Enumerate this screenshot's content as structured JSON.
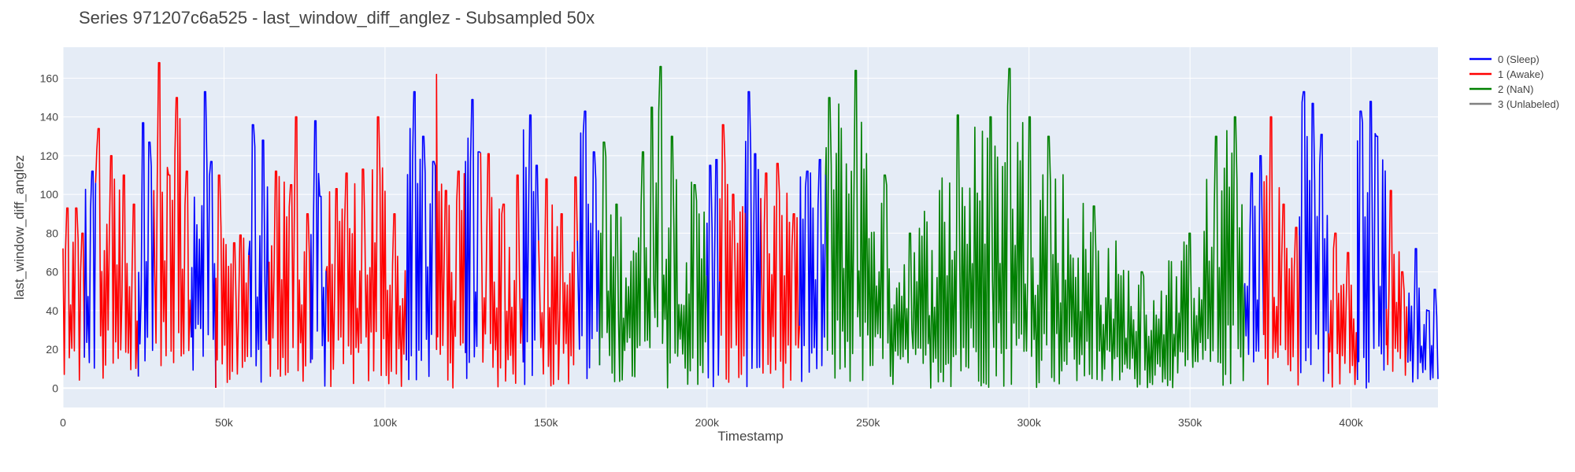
{
  "chart_data": {
    "type": "line",
    "title": "Series 971207c6a525 - last_window_diff_anglez - Subsampled 50x",
    "xlabel": "Timestamp",
    "ylabel": "last_window_diff_anglez",
    "xlim": [
      0,
      427000
    ],
    "ylim": [
      -10,
      176
    ],
    "grid": true,
    "legend_position": "top-right",
    "x_ticks": [
      {
        "value": 0,
        "label": "0"
      },
      {
        "value": 50000,
        "label": "50k"
      },
      {
        "value": 100000,
        "label": "100k"
      },
      {
        "value": 150000,
        "label": "150k"
      },
      {
        "value": 200000,
        "label": "200k"
      },
      {
        "value": 250000,
        "label": "250k"
      },
      {
        "value": 300000,
        "label": "300k"
      },
      {
        "value": 350000,
        "label": "350k"
      },
      {
        "value": 400000,
        "label": "400k"
      }
    ],
    "y_ticks": [
      {
        "value": 0,
        "label": "0"
      },
      {
        "value": 20,
        "label": "20"
      },
      {
        "value": 40,
        "label": "40"
      },
      {
        "value": 60,
        "label": "60"
      },
      {
        "value": 80,
        "label": "80"
      },
      {
        "value": 100,
        "label": "100"
      },
      {
        "value": 120,
        "label": "120"
      },
      {
        "value": 140,
        "label": "140"
      },
      {
        "value": 160,
        "label": "160"
      }
    ],
    "series": [
      {
        "name": "0 (Sleep)",
        "color": "#0000ff"
      },
      {
        "name": "1 (Awake)",
        "color": "#ff0000"
      },
      {
        "name": "2 (NaN)",
        "color": "#008000"
      },
      {
        "name": "3 (Unlabeled)",
        "color": "#808080"
      }
    ],
    "segments": [
      {
        "series": 1,
        "x_start": 0,
        "x_end": 7000,
        "peaks": [
          [
            1200,
            93
          ],
          [
            4000,
            93
          ],
          [
            6000,
            80
          ]
        ]
      },
      {
        "series": 0,
        "x_start": 7000,
        "x_end": 10500,
        "peaks": [
          [
            9000,
            112
          ]
        ]
      },
      {
        "series": 1,
        "x_start": 10500,
        "x_end": 23500,
        "peaks": [
          [
            11000,
            134
          ],
          [
            15000,
            120
          ],
          [
            19000,
            110
          ],
          [
            22000,
            95
          ]
        ]
      },
      {
        "series": 0,
        "x_start": 23500,
        "x_end": 28500,
        "peaks": [
          [
            25000,
            137
          ],
          [
            27000,
            127
          ]
        ]
      },
      {
        "series": 1,
        "x_start": 28500,
        "x_end": 40000,
        "peaks": [
          [
            30000,
            168
          ],
          [
            33000,
            110
          ],
          [
            35500,
            150
          ],
          [
            38500,
            112
          ]
        ]
      },
      {
        "series": 0,
        "x_start": 40000,
        "x_end": 47500,
        "peaks": [
          [
            44000,
            153
          ],
          [
            46000,
            117
          ]
        ]
      },
      {
        "series": 1,
        "x_start": 47500,
        "x_end": 58000,
        "peaks": [
          [
            48500,
            110
          ],
          [
            53000,
            75
          ],
          [
            55000,
            79
          ]
        ]
      },
      {
        "series": 0,
        "x_start": 58000,
        "x_end": 64000,
        "peaks": [
          [
            59000,
            136
          ],
          [
            62000,
            128
          ]
        ]
      },
      {
        "series": 1,
        "x_start": 64000,
        "x_end": 77000,
        "peaks": [
          [
            66000,
            112
          ],
          [
            71000,
            105
          ],
          [
            72500,
            140
          ],
          [
            76000,
            90
          ]
        ]
      },
      {
        "series": 0,
        "x_start": 77000,
        "x_end": 82000,
        "peaks": [
          [
            78500,
            138
          ],
          [
            80000,
            99
          ]
        ]
      },
      {
        "series": 1,
        "x_start": 82000,
        "x_end": 107000,
        "peaks": [
          [
            85000,
            103
          ],
          [
            88000,
            111
          ],
          [
            93000,
            113
          ],
          [
            98000,
            140
          ],
          [
            103000,
            90
          ]
        ]
      },
      {
        "series": 0,
        "x_start": 107000,
        "x_end": 116000,
        "peaks": [
          [
            109000,
            153
          ],
          [
            112000,
            130
          ],
          [
            115000,
            117
          ]
        ]
      },
      {
        "series": 1,
        "x_start": 116000,
        "x_end": 125000,
        "peaks": [
          [
            116000,
            162
          ],
          [
            119000,
            102
          ],
          [
            123000,
            112
          ]
        ]
      },
      {
        "series": 0,
        "x_start": 125000,
        "x_end": 130000,
        "peaks": [
          [
            127000,
            149
          ],
          [
            129000,
            122
          ]
        ]
      },
      {
        "series": 1,
        "x_start": 130000,
        "x_end": 143000,
        "peaks": [
          [
            132000,
            121
          ],
          [
            137000,
            95
          ],
          [
            141000,
            110
          ]
        ]
      },
      {
        "series": 0,
        "x_start": 143000,
        "x_end": 148000,
        "peaks": [
          [
            145000,
            141
          ],
          [
            147000,
            115
          ]
        ]
      },
      {
        "series": 1,
        "x_start": 148000,
        "x_end": 160000,
        "peaks": [
          [
            150000,
            108
          ],
          [
            155000,
            90
          ],
          [
            159000,
            109
          ]
        ]
      },
      {
        "series": 0,
        "x_start": 160000,
        "x_end": 167000,
        "peaks": [
          [
            162000,
            143
          ],
          [
            165000,
            122
          ]
        ]
      },
      {
        "series": 2,
        "x_start": 167000,
        "x_end": 200000,
        "peaks": [
          [
            168000,
            127
          ],
          [
            172000,
            95
          ],
          [
            180000,
            122
          ],
          [
            183000,
            145
          ],
          [
            185500,
            166
          ],
          [
            189000,
            130
          ],
          [
            196000,
            105
          ]
        ]
      },
      {
        "series": 0,
        "x_start": 200000,
        "x_end": 204000,
        "peaks": [
          [
            201000,
            115
          ],
          [
            203000,
            118
          ]
        ]
      },
      {
        "series": 1,
        "x_start": 204000,
        "x_end": 212000,
        "peaks": [
          [
            205000,
            136
          ],
          [
            208000,
            100
          ]
        ]
      },
      {
        "series": 0,
        "x_start": 212000,
        "x_end": 217000,
        "peaks": [
          [
            213000,
            153
          ],
          [
            215000,
            121
          ]
        ]
      },
      {
        "series": 1,
        "x_start": 217000,
        "x_end": 229000,
        "peaks": [
          [
            218500,
            111
          ],
          [
            222000,
            116
          ],
          [
            227000,
            90
          ]
        ]
      },
      {
        "series": 0,
        "x_start": 229000,
        "x_end": 237000,
        "peaks": [
          [
            231000,
            112
          ],
          [
            235000,
            118
          ]
        ]
      },
      {
        "series": 2,
        "x_start": 237000,
        "x_end": 367000,
        "peaks": [
          [
            238000,
            150
          ],
          [
            246000,
            164
          ],
          [
            255000,
            110
          ],
          [
            263000,
            80
          ],
          [
            278000,
            141
          ],
          [
            288000,
            140
          ],
          [
            294000,
            165
          ],
          [
            300000,
            140
          ],
          [
            306000,
            130
          ],
          [
            320000,
            94
          ],
          [
            335000,
            60
          ],
          [
            350000,
            80
          ],
          [
            358000,
            130
          ],
          [
            364000,
            140
          ]
        ]
      },
      {
        "series": 0,
        "x_start": 367000,
        "x_end": 373000,
        "peaks": [
          [
            369000,
            111
          ],
          [
            372000,
            120
          ]
        ]
      },
      {
        "series": 1,
        "x_start": 373000,
        "x_end": 384000,
        "peaks": [
          [
            375000,
            140
          ],
          [
            379000,
            95
          ],
          [
            383000,
            83
          ]
        ]
      },
      {
        "series": 0,
        "x_start": 384000,
        "x_end": 393000,
        "peaks": [
          [
            385500,
            153
          ],
          [
            388000,
            147
          ],
          [
            391000,
            131
          ]
        ]
      },
      {
        "series": 1,
        "x_start": 393000,
        "x_end": 402000,
        "peaks": [
          [
            395000,
            80
          ],
          [
            399000,
            70
          ]
        ]
      },
      {
        "series": 0,
        "x_start": 402000,
        "x_end": 411000,
        "peaks": [
          [
            403000,
            143
          ],
          [
            406000,
            148
          ],
          [
            408000,
            130
          ]
        ]
      },
      {
        "series": 1,
        "x_start": 411000,
        "x_end": 418000,
        "peaks": [
          [
            412500,
            102
          ],
          [
            416000,
            60
          ]
        ]
      },
      {
        "series": 0,
        "x_start": 418000,
        "x_end": 427000,
        "peaks": [
          [
            420000,
            72
          ],
          [
            424000,
            40
          ],
          [
            426000,
            51
          ]
        ]
      }
    ]
  }
}
